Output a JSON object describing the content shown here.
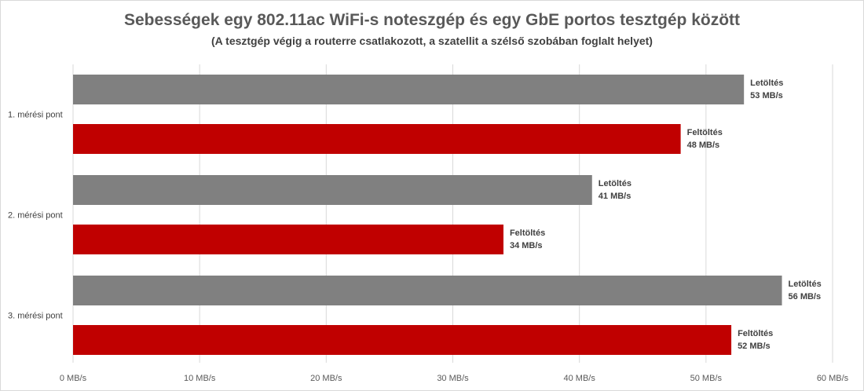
{
  "chart_data": {
    "type": "bar",
    "orientation": "horizontal",
    "title": "Sebességek egy 802.11ac WiFi-s noteszgép és egy GbE portos tesztgép között",
    "subtitle": "(A tesztgép végig a routerre csatlakozott, a szatellit a szélső szobában foglalt helyet)",
    "xlabel": "",
    "ylabel": "",
    "categories": [
      "1. mérési pont",
      "2. mérési pont",
      "3. mérési pont"
    ],
    "unit": "MB/s",
    "xlim": [
      0,
      60
    ],
    "ticks": [
      0,
      10,
      20,
      30,
      40,
      50,
      60
    ],
    "tick_labels": [
      "0 MB/s",
      "10 MB/s",
      "20 MB/s",
      "30 MB/s",
      "40 MB/s",
      "50 MB/s",
      "60 MB/s"
    ],
    "grid": true,
    "legend": "none",
    "series": [
      {
        "name": "Letöltés",
        "color": "#808080",
        "values": [
          53,
          41,
          56
        ],
        "labels": [
          "53 MB/s",
          "41 MB/s",
          "56 MB/s"
        ]
      },
      {
        "name": "Feltöltés",
        "color": "#c00000",
        "values": [
          48,
          34,
          52
        ],
        "labels": [
          "48 MB/s",
          "34 MB/s",
          "52 MB/s"
        ]
      }
    ]
  }
}
